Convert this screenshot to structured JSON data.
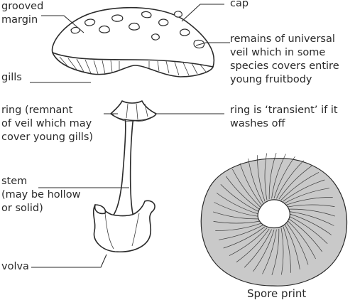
{
  "labels": {
    "grooved_margin": [
      "grooved",
      "margin"
    ],
    "cap": "cap",
    "universal_veil": [
      "remains of universal",
      "veil which in some",
      "species covers entire",
      "young fruitbody"
    ],
    "gills": "gills",
    "ring": [
      "ring (remnant",
      "of veil which may",
      "cover young gills)"
    ],
    "ring_transient": [
      "ring is ‘transient’ if it",
      "washes off"
    ],
    "stem": [
      "stem",
      "(may be hollow",
      "or solid)"
    ],
    "volva": "volva",
    "spore_print": "Spore print"
  },
  "colors": {
    "line": "#2a2a2a",
    "spore_print_fill": "#c9c9c9"
  }
}
